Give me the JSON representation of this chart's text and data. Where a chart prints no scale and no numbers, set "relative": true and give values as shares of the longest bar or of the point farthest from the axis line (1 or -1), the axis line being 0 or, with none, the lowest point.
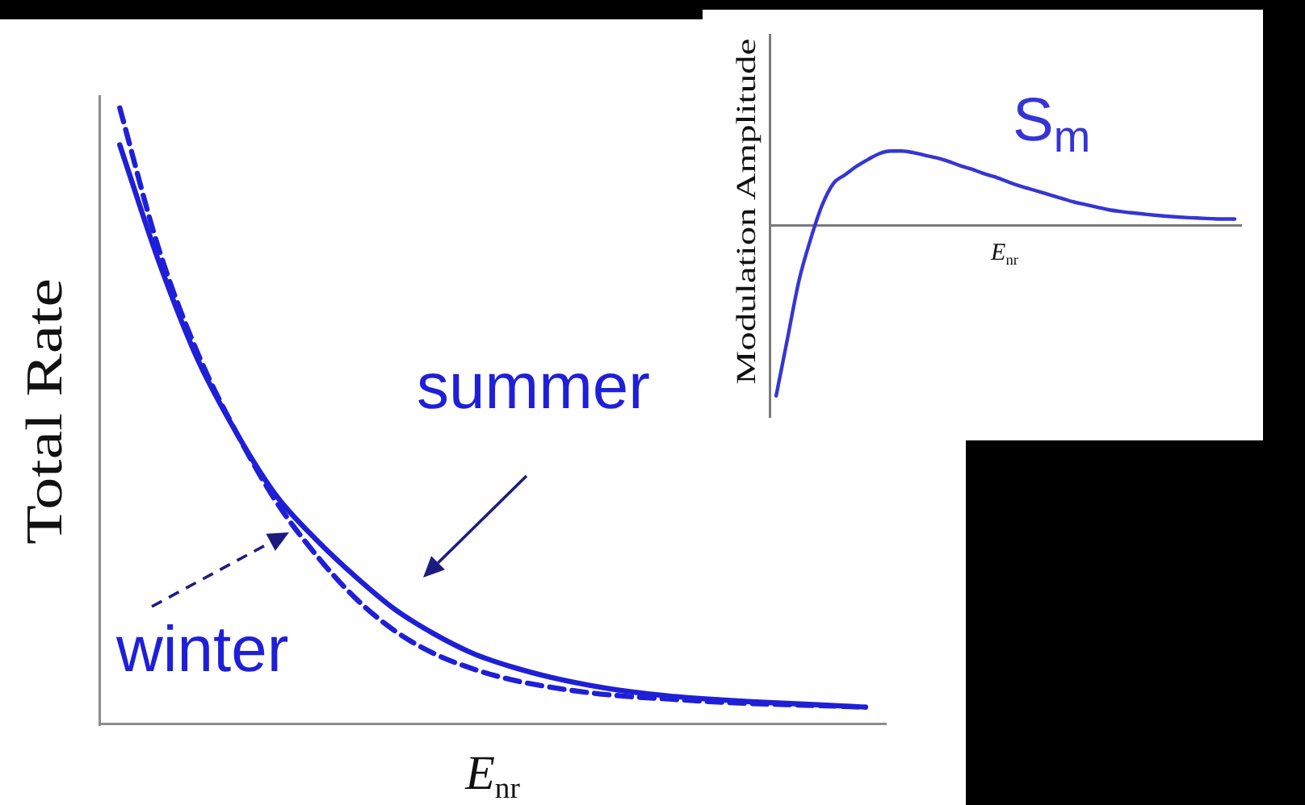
{
  "chart_data": [
    {
      "type": "line",
      "xlabel": "E$_{nr}$",
      "ylabel": "Total Rate",
      "relative": true,
      "legend": false,
      "grid": false,
      "marker": "none",
      "categories": [
        null,
        null,
        null,
        null,
        null,
        null,
        null,
        null,
        null,
        null,
        null,
        null,
        null,
        null,
        null,
        null,
        null,
        null,
        null,
        null
      ],
      "series": [
        {
          "name": "summer",
          "color": "#1f1fd8",
          "line_style": "solid",
          "values": [
            0.94,
            0.75,
            0.59,
            0.47,
            0.37,
            0.3,
            0.24,
            0.187,
            0.147,
            0.115,
            0.093,
            0.076,
            0.063,
            0.053,
            0.046,
            0.041,
            0.037,
            0.034,
            0.031,
            0.028
          ]
        },
        {
          "name": "winter",
          "color": "#1f1fd8",
          "line_style": "dashed",
          "values": [
            1.0,
            0.77,
            0.6,
            0.47,
            0.36,
            0.275,
            0.205,
            0.152,
            0.115,
            0.09,
            0.072,
            0.06,
            0.051,
            0.045,
            0.041,
            0.037,
            0.034,
            0.032,
            0.03,
            0.028
          ]
        }
      ]
    },
    {
      "type": "line",
      "xlabel": "E$_{nr}$",
      "ylabel": "Modulation Amplitude",
      "relative": true,
      "legend": false,
      "grid": false,
      "marker": "none",
      "categories": [
        null,
        null,
        null,
        null,
        null,
        null,
        null,
        null,
        null,
        null,
        null,
        null,
        null,
        null,
        null,
        null,
        null,
        null,
        null,
        null,
        null,
        null,
        null,
        null,
        null,
        null,
        null,
        null,
        null,
        null,
        null,
        null,
        null,
        null,
        null,
        null,
        null,
        null,
        null,
        null,
        null
      ],
      "series": [
        {
          "name": "S$_{m}$",
          "color": "#3535d5",
          "line_style": "solid",
          "values": [
            -1.0,
            -0.66,
            -0.32,
            -0.08,
            0.12,
            0.25,
            0.3,
            0.35,
            0.39,
            0.425,
            0.44,
            0.44,
            0.43,
            0.415,
            0.4,
            0.38,
            0.355,
            0.335,
            0.31,
            0.29,
            0.265,
            0.24,
            0.22,
            0.2,
            0.18,
            0.16,
            0.14,
            0.125,
            0.11,
            0.095,
            0.085,
            0.077,
            0.07,
            0.063,
            0.057,
            0.052,
            0.048,
            0.045,
            0.042,
            0.04,
            0.04
          ]
        }
      ]
    }
  ]
}
